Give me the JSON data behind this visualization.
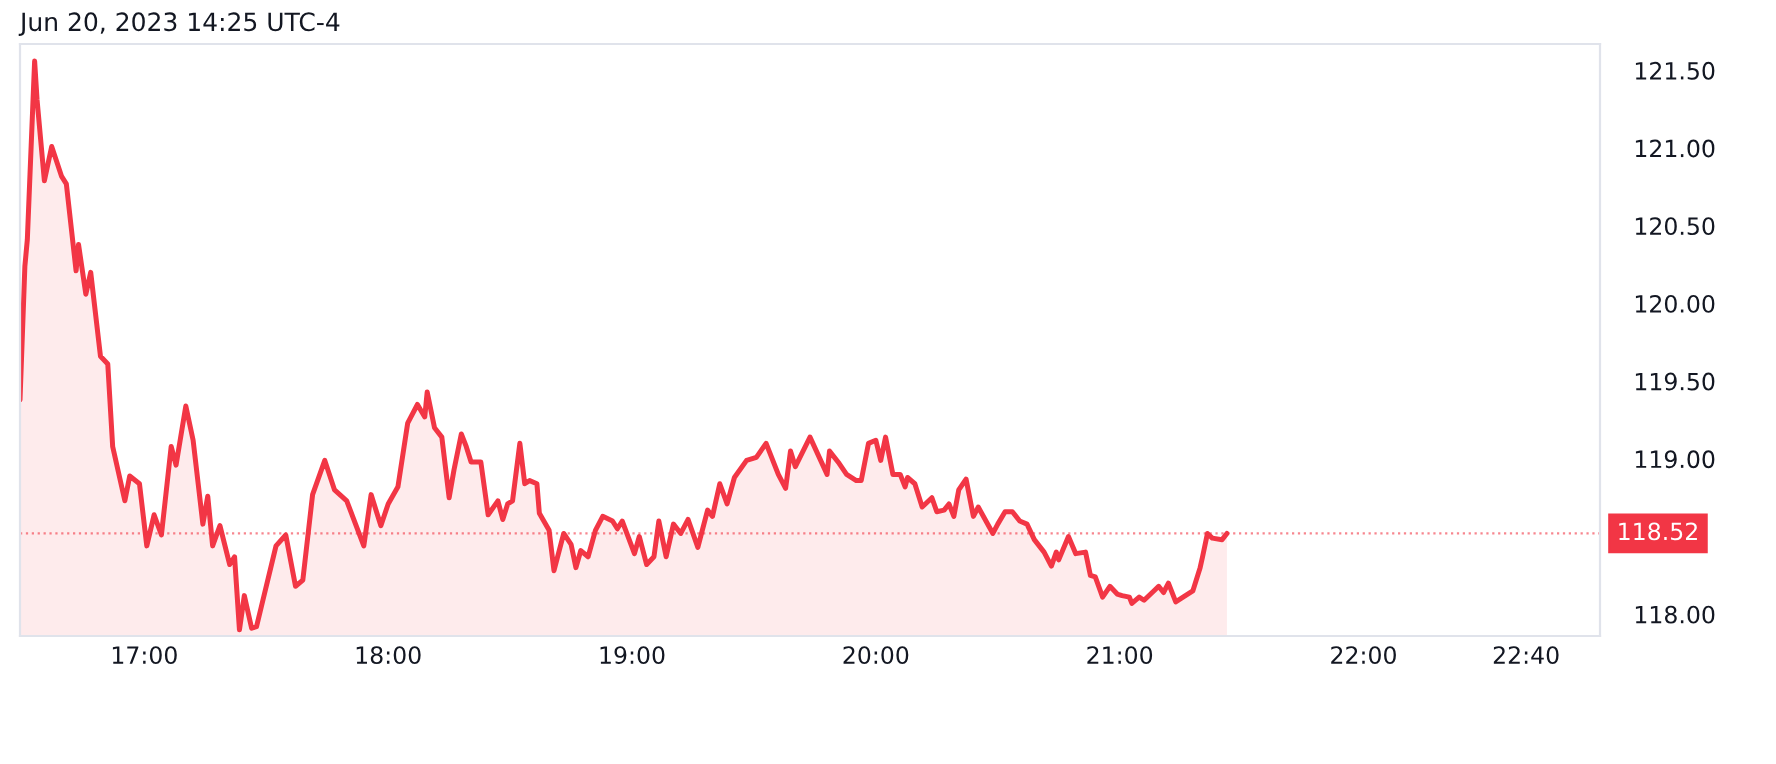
{
  "chart_data": {
    "type": "area",
    "title": "Jun 20, 2023 14:25 UTC-4",
    "x": [
      16.49,
      16.51,
      16.52,
      16.55,
      16.56,
      16.59,
      16.62,
      16.66,
      16.68,
      16.72,
      16.73,
      16.76,
      16.78,
      16.82,
      16.85,
      16.87,
      16.92,
      16.94,
      16.98,
      17.01,
      17.04,
      17.07,
      17.11,
      17.13,
      17.17,
      17.2,
      17.24,
      17.26,
      17.28,
      17.31,
      17.35,
      17.37,
      17.39,
      17.41,
      17.44,
      17.46,
      17.48,
      17.52,
      17.54,
      17.58,
      17.62,
      17.65,
      17.69,
      17.74,
      17.78,
      17.83,
      17.9,
      17.93,
      17.97,
      18.0,
      18.04,
      18.08,
      18.12,
      18.15,
      18.16,
      18.19,
      18.22,
      18.25,
      18.27,
      18.3,
      18.32,
      18.34,
      18.38,
      18.41,
      18.45,
      18.47,
      18.49,
      18.51,
      18.54,
      18.56,
      18.58,
      18.61,
      18.62,
      18.66,
      18.68,
      18.72,
      18.75,
      18.77,
      18.79,
      18.82,
      18.85,
      18.88,
      18.92,
      18.94,
      18.96,
      19.01,
      19.03,
      19.06,
      19.09,
      19.11,
      19.14,
      19.17,
      19.2,
      19.23,
      19.27,
      19.31,
      19.33,
      19.36,
      19.39,
      19.42,
      19.47,
      19.51,
      19.55,
      19.6,
      19.63,
      19.65,
      19.67,
      19.73,
      19.8,
      19.81,
      19.85,
      19.88,
      19.92,
      19.94,
      19.97,
      20.0,
      20.02,
      20.04,
      20.07,
      20.1,
      20.12,
      20.13,
      20.16,
      20.19,
      20.23,
      20.25,
      20.28,
      20.3,
      20.32,
      20.34,
      20.37,
      20.4,
      20.42,
      20.48,
      20.5,
      20.53,
      20.56,
      20.59,
      20.62,
      20.65,
      20.69,
      20.72,
      20.74,
      20.75,
      20.79,
      20.82,
      20.86,
      20.88,
      20.9,
      20.93,
      20.96,
      20.99,
      21.01,
      21.04,
      21.05,
      21.08,
      21.1,
      21.14,
      21.16,
      21.18,
      21.2,
      21.23,
      21.26,
      21.3,
      21.33,
      21.34,
      21.36,
      21.38,
      21.42,
      21.44
    ],
    "series": [
      {
        "color": "#f23645",
        "values": [
          119.38,
          120.24,
          120.41,
          121.56,
          121.31,
          120.79,
          121.01,
          120.82,
          120.77,
          120.21,
          120.38,
          120.06,
          120.2,
          119.66,
          119.61,
          119.08,
          118.73,
          118.89,
          118.84,
          118.44,
          118.64,
          118.51,
          119.08,
          118.96,
          119.34,
          119.12,
          118.58,
          118.76,
          118.44,
          118.57,
          118.32,
          118.37,
          117.9,
          118.12,
          117.91,
          117.92,
          118.05,
          118.31,
          118.44,
          118.51,
          118.18,
          118.22,
          118.77,
          118.99,
          118.8,
          118.73,
          118.44,
          118.77,
          118.57,
          118.71,
          118.82,
          119.23,
          119.35,
          119.27,
          119.43,
          119.2,
          119.14,
          118.75,
          118.93,
          119.16,
          119.08,
          118.98,
          118.98,
          118.64,
          118.73,
          118.61,
          118.71,
          118.73,
          119.1,
          118.84,
          118.86,
          118.84,
          118.65,
          118.54,
          118.28,
          118.52,
          118.45,
          118.3,
          118.41,
          118.37,
          118.54,
          118.63,
          118.6,
          118.55,
          118.6,
          118.39,
          118.5,
          118.32,
          118.37,
          118.6,
          118.37,
          118.58,
          118.52,
          118.61,
          118.43,
          118.67,
          118.63,
          118.84,
          118.71,
          118.88,
          118.99,
          119.01,
          119.1,
          118.9,
          118.81,
          119.05,
          118.95,
          119.14,
          118.9,
          119.05,
          118.97,
          118.9,
          118.86,
          118.86,
          119.1,
          119.12,
          118.99,
          119.14,
          118.9,
          118.9,
          118.82,
          118.88,
          118.84,
          118.69,
          118.75,
          118.66,
          118.67,
          118.71,
          118.63,
          118.8,
          118.87,
          118.63,
          118.69,
          118.52,
          118.58,
          118.66,
          118.66,
          118.6,
          118.58,
          118.48,
          118.4,
          118.31,
          118.4,
          118.35,
          118.5,
          118.39,
          118.4,
          118.25,
          118.24,
          118.11,
          118.18,
          118.13,
          118.12,
          118.11,
          118.07,
          118.11,
          118.09,
          118.15,
          118.18,
          118.14,
          118.2,
          118.08,
          118.11,
          118.15,
          118.3,
          118.37,
          118.52,
          118.49,
          118.48,
          118.52
        ]
      }
    ],
    "xlim": [
      16.49,
      22.97
    ],
    "xticks": [
      {
        "value": 17,
        "label": "17:00"
      },
      {
        "value": 18,
        "label": "18:00"
      },
      {
        "value": 19,
        "label": "19:00"
      },
      {
        "value": 20,
        "label": "20:00"
      },
      {
        "value": 21,
        "label": "21:00"
      },
      {
        "value": 22,
        "label": "22:00"
      },
      {
        "value": 22.667,
        "label": "22:40"
      }
    ],
    "ylim": [
      117.86,
      121.67
    ],
    "yticks": [
      {
        "value": 118,
        "label": "118.00"
      },
      {
        "value": 119,
        "label": "119.00"
      },
      {
        "value": 119.5,
        "label": "119.50"
      },
      {
        "value": 120,
        "label": "120.00"
      },
      {
        "value": 120.5,
        "label": "120.50"
      },
      {
        "value": 121,
        "label": "121.00"
      },
      {
        "value": 121.5,
        "label": "121.50"
      }
    ],
    "ref_lines": [
      {
        "axis": "y",
        "value": 118.52,
        "label": "118.52",
        "color": "#f23645",
        "line_style": "dotted"
      }
    ],
    "grid": false,
    "legend": false
  }
}
